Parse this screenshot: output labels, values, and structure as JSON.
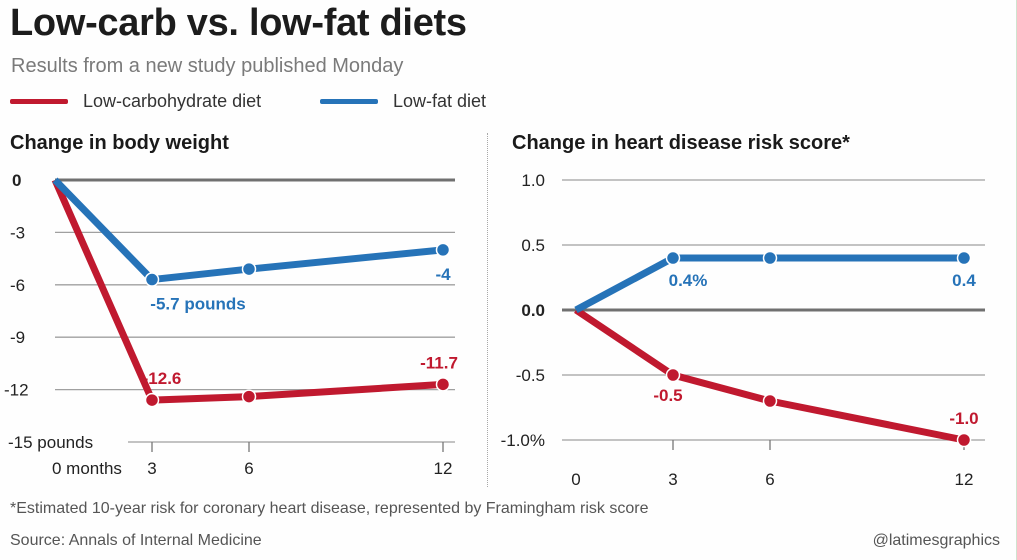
{
  "header": {
    "title": "Low-carb vs. low-fat diets",
    "subtitle": "Results from a new study published Monday"
  },
  "legend": [
    {
      "label": "Low-carbohydrate diet",
      "color": "#c0192f"
    },
    {
      "label": "Low-fat diet",
      "color": "#2673b8"
    }
  ],
  "footer": {
    "footnote": "*Estimated 10-year risk for coronary heart disease, represented by Framingham risk score",
    "source": "Source: Annals of Internal Medicine",
    "credit": "@latimesgraphics"
  },
  "colors": {
    "low_carb": "#c0192f",
    "low_fat": "#2673b8",
    "grid": "#a0a0a0",
    "zero_line": "#707070",
    "axis_text": "#333333"
  },
  "chart_data": [
    {
      "type": "line",
      "title": "Change in body weight",
      "xlabel": "months",
      "ylabel": "pounds",
      "x": [
        0,
        3,
        6,
        12
      ],
      "x_tick_labels": [
        "0 months",
        "3",
        "6",
        "12"
      ],
      "y_ticks": [
        0,
        -3,
        -6,
        -9,
        -12,
        -15
      ],
      "y_tick_labels": [
        "0",
        "-3",
        "-6",
        "-9",
        "-12",
        "-15 pounds"
      ],
      "ylim": [
        -15,
        0
      ],
      "xlim": [
        0,
        12
      ],
      "grid": true,
      "series": [
        {
          "name": "Low-carbohydrate diet",
          "key": "low_carb",
          "values": [
            0,
            -12.6,
            -12.4,
            -11.7
          ],
          "labels": [
            null,
            "-12.6",
            null,
            "-11.7"
          ]
        },
        {
          "name": "Low-fat diet",
          "key": "low_fat",
          "values": [
            0,
            -5.7,
            -5.1,
            -4.0
          ],
          "labels": [
            null,
            "-5.7 pounds",
            null,
            "-4"
          ]
        }
      ]
    },
    {
      "type": "line",
      "title": "Change in heart disease risk score*",
      "xlabel": "months",
      "ylabel": "%",
      "x": [
        0,
        3,
        6,
        12
      ],
      "x_tick_labels": [
        "0",
        "3",
        "6",
        "12"
      ],
      "y_ticks": [
        1.0,
        0.5,
        0.0,
        -0.5,
        -1.0
      ],
      "y_tick_labels": [
        "1.0",
        "0.5",
        "0.0",
        "-0.5",
        "-1.0%"
      ],
      "ylim": [
        -1.0,
        1.0
      ],
      "xlim": [
        0,
        12
      ],
      "grid": true,
      "series": [
        {
          "name": "Low-carbohydrate diet",
          "key": "low_carb",
          "values": [
            0,
            -0.5,
            -0.7,
            -1.0
          ],
          "labels": [
            null,
            "-0.5",
            null,
            "-1.0"
          ]
        },
        {
          "name": "Low-fat diet",
          "key": "low_fat",
          "values": [
            0,
            0.4,
            0.4,
            0.4
          ],
          "labels": [
            null,
            "0.4%",
            null,
            "0.4"
          ]
        }
      ]
    }
  ]
}
